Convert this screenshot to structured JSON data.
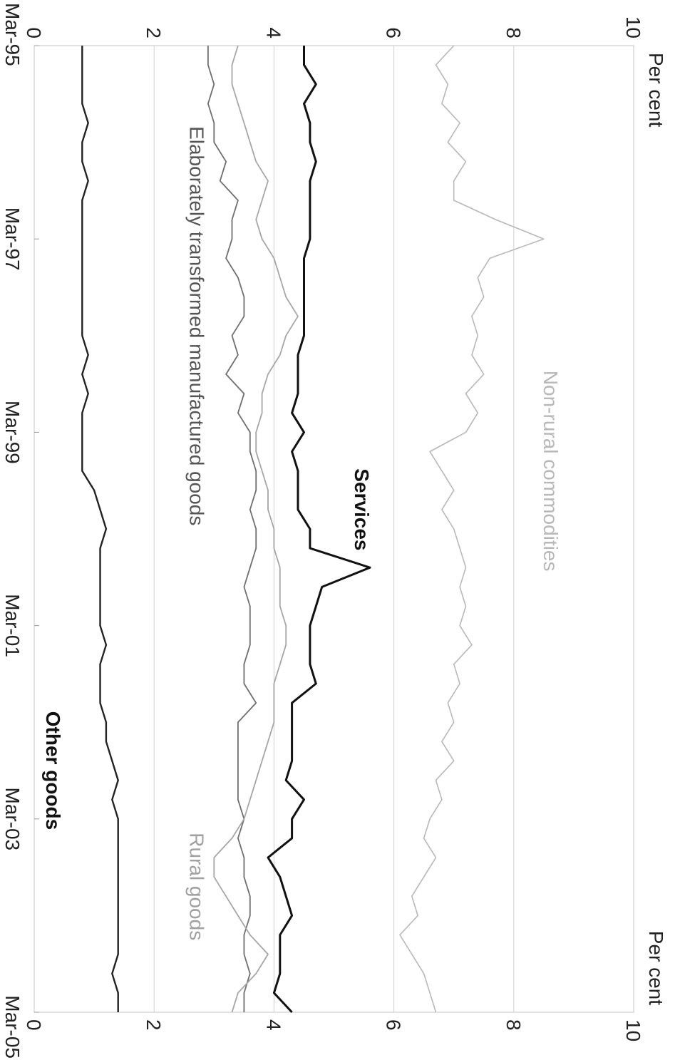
{
  "chart_data": {
    "type": "line",
    "orientation": "rotated 90° clockwise",
    "left_axis_label": "Per cent",
    "right_axis_label": "Per cent",
    "ylim": [
      0,
      10
    ],
    "y_ticks": [
      "0",
      "2",
      "4",
      "6",
      "8",
      "10"
    ],
    "xlim": [
      "Mar-95",
      "Mar-05"
    ],
    "x_ticks": [
      "Mar-95",
      "Mar-97",
      "Mar-99",
      "Mar-01",
      "Mar-03",
      "Mar-05"
    ],
    "grid": true,
    "frequency": "quarterly",
    "series": [
      {
        "name": "Non-rural commodities",
        "color": "#b8b8b8",
        "stroke_width": 1.6,
        "values": [
          7.0,
          6.7,
          6.9,
          6.8,
          7.1,
          6.9,
          7.2,
          7.0,
          7.0,
          7.7,
          8.5,
          7.6,
          7.4,
          7.5,
          7.3,
          7.4,
          7.3,
          7.5,
          7.2,
          7.4,
          7.2,
          6.6,
          6.8,
          7.0,
          6.8,
          7.0,
          7.1,
          7.2,
          7.1,
          7.2,
          7.1,
          7.3,
          7.0,
          7.1,
          6.9,
          7.0,
          6.8,
          7.0,
          6.7,
          6.8,
          6.6,
          6.5,
          6.7,
          6.5,
          6.3,
          6.4,
          6.1,
          6.3,
          6.5,
          6.6,
          6.7
        ]
      },
      {
        "name": "Services",
        "color": "#111111",
        "stroke_width": 3,
        "values": [
          4.5,
          4.5,
          4.7,
          4.5,
          4.6,
          4.6,
          4.7,
          4.6,
          4.6,
          4.6,
          4.6,
          4.5,
          4.5,
          4.5,
          4.5,
          4.5,
          4.4,
          4.4,
          4.4,
          4.3,
          4.5,
          4.3,
          4.4,
          4.4,
          4.4,
          4.6,
          4.6,
          5.6,
          4.8,
          4.7,
          4.6,
          4.6,
          4.6,
          4.7,
          4.3,
          4.3,
          4.3,
          4.3,
          4.2,
          4.5,
          4.3,
          4.3,
          3.9,
          4.1,
          4.2,
          4.3,
          4.1,
          4.1,
          4.1,
          4.0,
          4.3
        ]
      },
      {
        "name": "Elaborately transformed manufactured goods",
        "color": "#6f6f6f",
        "stroke_width": 1.8,
        "values": [
          2.9,
          2.9,
          3.0,
          2.9,
          3.0,
          3.0,
          3.2,
          3.1,
          3.4,
          3.3,
          3.3,
          3.2,
          3.4,
          3.5,
          3.5,
          3.3,
          3.4,
          3.2,
          3.5,
          3.4,
          3.6,
          3.6,
          3.7,
          3.7,
          3.6,
          3.7,
          3.7,
          3.6,
          3.5,
          3.6,
          3.6,
          3.6,
          3.5,
          3.5,
          3.7,
          3.4,
          3.4,
          3.4,
          3.4,
          3.4,
          3.5,
          3.4,
          3.5,
          3.5,
          3.6,
          3.6,
          3.5,
          3.5,
          3.6,
          3.5,
          3.5
        ]
      },
      {
        "name": "Rural goods",
        "color": "#a6a6a6",
        "stroke_width": 1.8,
        "values": [
          3.4,
          3.3,
          3.3,
          3.4,
          3.5,
          3.6,
          3.7,
          3.9,
          3.8,
          3.7,
          3.8,
          4.0,
          4.1,
          4.2,
          4.4,
          4.2,
          4.1,
          3.9,
          3.8,
          3.8,
          3.7,
          3.7,
          3.8,
          3.9,
          3.9,
          4.0,
          4.0,
          4.1,
          4.1,
          4.1,
          4.2,
          4.2,
          4.1,
          4.0,
          4.0,
          4.0,
          3.9,
          3.8,
          3.7,
          3.6,
          3.5,
          3.3,
          3.0,
          3.0,
          3.2,
          3.4,
          3.6,
          3.9,
          3.7,
          3.4,
          3.3
        ]
      },
      {
        "name": "Other goods",
        "color": "#222222",
        "stroke_width": 2.4,
        "values": [
          0.8,
          0.8,
          0.8,
          0.8,
          0.9,
          0.8,
          0.8,
          0.9,
          0.8,
          0.8,
          0.8,
          0.8,
          0.8,
          0.8,
          0.8,
          0.8,
          0.9,
          0.8,
          0.9,
          0.8,
          0.8,
          0.8,
          0.8,
          1.0,
          1.1,
          1.2,
          1.1,
          1.1,
          1.1,
          1.1,
          1.1,
          1.2,
          1.1,
          1.1,
          1.1,
          1.2,
          1.2,
          1.3,
          1.4,
          1.3,
          1.4,
          1.4,
          1.4,
          1.4,
          1.4,
          1.4,
          1.4,
          1.4,
          1.3,
          1.4,
          1.4
        ]
      }
    ],
    "annotations": [
      {
        "text": "Non-rural commodities",
        "series": "Non-rural commodities",
        "date_index": 22,
        "value": 8.5,
        "bold": false,
        "color": "#b8b8b8"
      },
      {
        "text": "Services",
        "series": "Services",
        "date_index": 24,
        "value": 5.35,
        "bold": true,
        "color": "#111111"
      },
      {
        "text": "Elaborately transformed manufactured goods",
        "series": "Elaborately transformed manufactured goods",
        "date_index": 14.5,
        "value": 2.6,
        "bold": false,
        "color": "#555555"
      },
      {
        "text": "Rural goods",
        "series": "Rural goods",
        "date_index": 43.5,
        "value": 2.6,
        "bold": false,
        "color": "#a0a0a0"
      },
      {
        "text": "Other goods",
        "series": "Other goods",
        "date_index": 37.5,
        "value": 0.2,
        "bold": true,
        "color": "#111111"
      }
    ]
  }
}
